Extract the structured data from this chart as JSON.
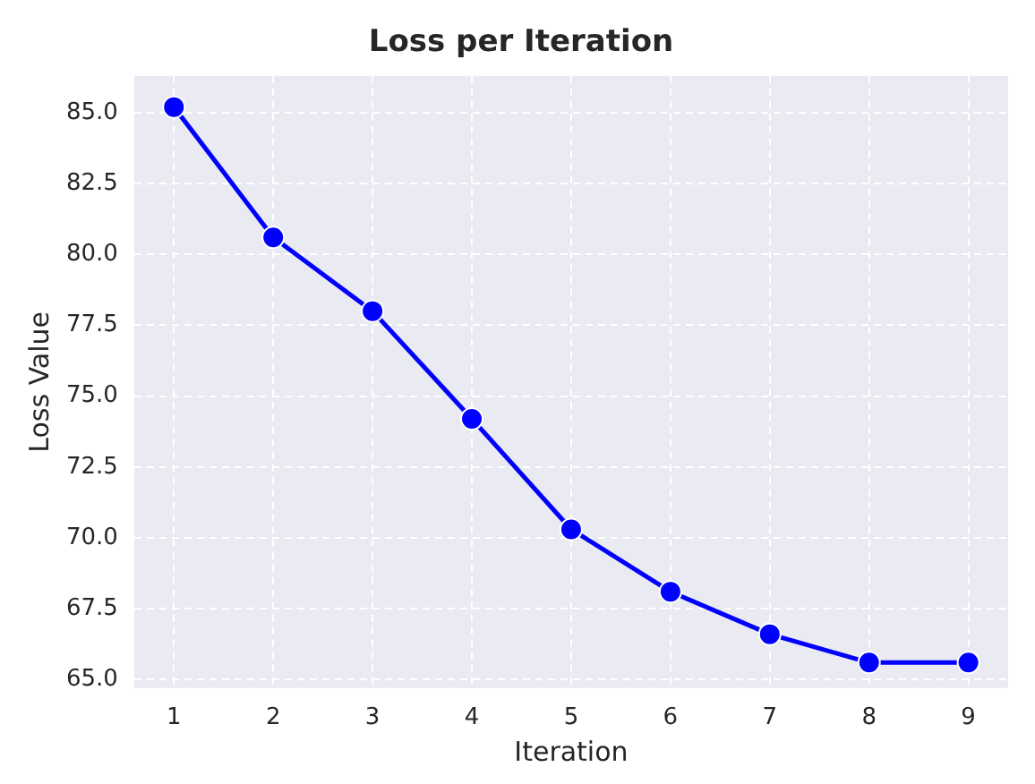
{
  "chart_data": {
    "type": "line",
    "title": "Loss per Iteration",
    "xlabel": "Iteration",
    "ylabel": "Loss Value",
    "x": [
      1,
      2,
      3,
      4,
      5,
      6,
      7,
      8,
      9
    ],
    "series": [
      {
        "color": "#0000ff",
        "values": [
          85.2,
          80.6,
          78.0,
          74.2,
          70.3,
          68.1,
          66.6,
          65.6,
          65.6
        ]
      }
    ],
    "xlim": [
      0.6,
      9.4
    ],
    "xticks": [
      1,
      2,
      3,
      4,
      5,
      6,
      7,
      8,
      9
    ],
    "ylim": [
      64.7,
      86.3
    ],
    "yticks": [
      {
        "value": 65,
        "label": "65.0"
      },
      {
        "value": 67.5,
        "label": "67.5"
      },
      {
        "value": 70,
        "label": "70.0"
      },
      {
        "value": 72.5,
        "label": "72.5"
      },
      {
        "value": 75,
        "label": "75.0"
      },
      {
        "value": 77.5,
        "label": "77.5"
      },
      {
        "value": 80,
        "label": "80.0"
      },
      {
        "value": 82.5,
        "label": "82.5"
      },
      {
        "value": 85,
        "label": "85.0"
      }
    ],
    "grid": true,
    "legend": false,
    "marker": "circle",
    "line_style": "solid"
  }
}
